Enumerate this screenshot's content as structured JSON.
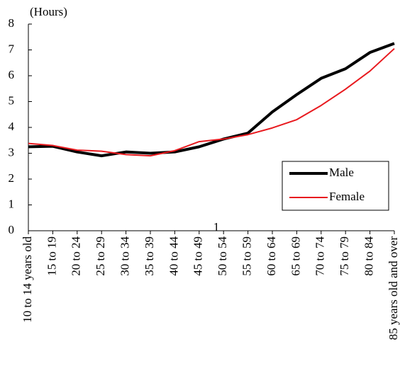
{
  "chart_data": {
    "type": "line",
    "y_unit_label": "(Hours)",
    "annotation": "1",
    "categories": [
      "10 to 14 years old",
      "15 to 19",
      "20 to 24",
      "25 to 29",
      "30 to 34",
      "35 to 39",
      "40 to 44",
      "45 to 49",
      "50 to 54",
      "55 to 59",
      "60 to 64",
      "65 to 69",
      "70 to 74",
      "75 to 79",
      "80 to 84",
      "85 years old and over"
    ],
    "series": [
      {
        "name": "Male",
        "color": "#000000",
        "width": 4,
        "values": [
          3.25,
          3.27,
          3.05,
          2.9,
          3.05,
          3.0,
          3.05,
          3.25,
          3.55,
          3.78,
          4.6,
          5.27,
          5.9,
          6.27,
          6.9,
          7.25
        ]
      },
      {
        "name": "Female",
        "color": "#e8191e",
        "width": 2,
        "values": [
          3.38,
          3.3,
          3.12,
          3.08,
          2.95,
          2.9,
          3.1,
          3.45,
          3.55,
          3.72,
          3.98,
          4.3,
          4.85,
          5.48,
          6.18,
          7.05
        ]
      }
    ],
    "ylim": [
      0,
      8
    ],
    "yticks": [
      0,
      1,
      2,
      3,
      4,
      5,
      6,
      7,
      8
    ],
    "grid": false,
    "legend": "lower right"
  }
}
